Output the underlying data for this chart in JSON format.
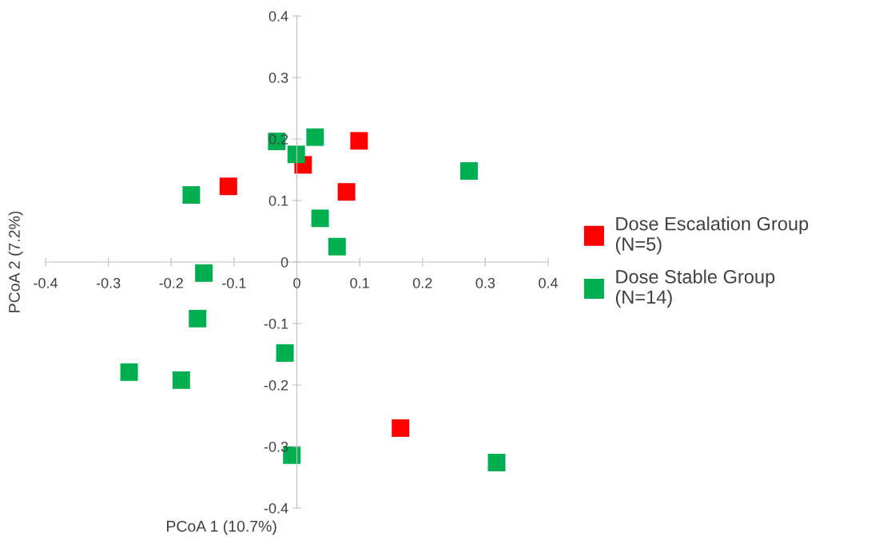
{
  "chart_data": {
    "type": "scatter",
    "xlabel": "PCoA 1 (10.7%)",
    "ylabel": "PCoA 2 (7.2%)",
    "xlim": [
      -0.4,
      0.4
    ],
    "ylim": [
      -0.4,
      0.4
    ],
    "xticks": [
      -0.4,
      -0.3,
      -0.2,
      -0.1,
      {
        "value": 0,
        "label": "0"
      },
      0.1,
      0.2,
      0.3,
      0.4
    ],
    "yticks": [
      -0.4,
      -0.3,
      -0.2,
      -0.1,
      {
        "value": 0,
        "label": "0"
      },
      0.1,
      0.2,
      0.3,
      0.4
    ],
    "marker": "square",
    "grid": false,
    "legend": "right",
    "series": [
      {
        "name": "Dose Escalation Group\n(N=5)",
        "color": "#ff0000",
        "x": [
          -0.109,
          0.01,
          0.099,
          0.079,
          0.165
        ],
        "values": [
          0.123,
          0.158,
          0.197,
          0.114,
          -0.27
        ]
      },
      {
        "name": "Dose Stable Group\n(N=14)",
        "color": "#00b050",
        "x": [
          -0.032,
          -0.001,
          0.029,
          0.274,
          -0.168,
          0.037,
          0.064,
          -0.148,
          -0.158,
          -0.019,
          -0.267,
          -0.184,
          -0.008,
          0.318
        ],
        "values": [
          0.196,
          0.175,
          0.203,
          0.148,
          0.109,
          0.071,
          0.025,
          -0.018,
          -0.092,
          -0.148,
          -0.179,
          -0.192,
          -0.314,
          -0.326
        ]
      }
    ]
  }
}
